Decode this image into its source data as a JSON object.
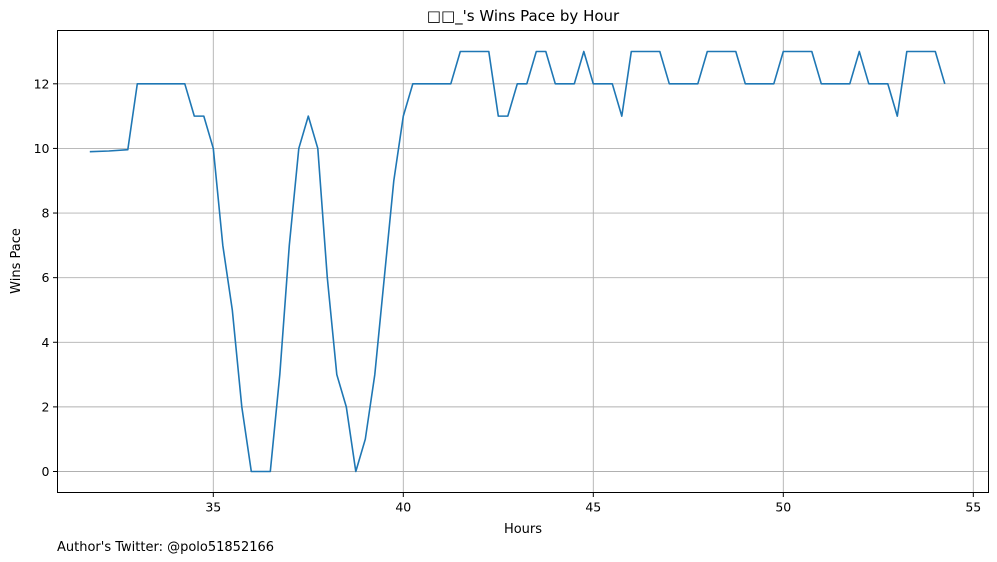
{
  "chart_data": {
    "type": "line",
    "title": "□□_'s Wins Pace by Hour",
    "xlabel": "Hours",
    "ylabel": "Wins Pace",
    "xlim": [
      30.9,
      55.4
    ],
    "ylim": [
      -0.65,
      13.65
    ],
    "xticks": [
      35,
      40,
      45,
      50,
      55
    ],
    "yticks": [
      0,
      2,
      4,
      6,
      8,
      10,
      12
    ],
    "grid": true,
    "line_color": "#1f77b4",
    "footnote": "Author's Twitter: @polo51852166",
    "series": [
      {
        "x": [
          31.75,
          32.25,
          32.75,
          33.0,
          33.25,
          33.5,
          33.75,
          34.0,
          34.25,
          34.5,
          34.75,
          35.0,
          35.25,
          35.5,
          35.75,
          36.0,
          36.25,
          36.5,
          36.75,
          37.0,
          37.25,
          37.5,
          37.75,
          38.0,
          38.25,
          38.5,
          38.75,
          39.0,
          39.25,
          39.5,
          39.75,
          40.0,
          40.25,
          40.5,
          40.75,
          41.0,
          41.25,
          41.5,
          41.75,
          42.0,
          42.25,
          42.5,
          42.75,
          43.0,
          43.25,
          43.5,
          43.75,
          44.0,
          44.25,
          44.5,
          44.75,
          45.0,
          45.25,
          45.5,
          45.75,
          46.0,
          46.25,
          46.5,
          46.75,
          47.0,
          47.25,
          47.5,
          47.75,
          48.0,
          48.25,
          48.5,
          48.75,
          49.0,
          49.25,
          49.5,
          49.75,
          50.0,
          50.25,
          50.5,
          50.75,
          51.0,
          51.25,
          51.5,
          51.75,
          52.0,
          52.25,
          52.5,
          52.75,
          53.0,
          53.25,
          53.5,
          53.75,
          54.0,
          54.25
        ],
        "y": [
          9.9,
          9.92,
          9.96,
          12,
          12,
          12,
          12,
          12,
          12,
          11,
          11,
          10,
          7,
          5,
          2,
          0,
          0,
          0,
          3,
          7,
          10,
          11,
          10,
          6,
          3,
          2,
          0,
          1,
          3,
          6,
          9,
          11,
          12,
          12,
          12,
          12,
          12,
          13,
          13,
          13,
          13,
          11,
          11,
          12,
          12,
          13,
          13,
          12,
          12,
          12,
          13,
          12,
          12,
          12,
          11,
          13,
          13,
          13,
          13,
          12,
          12,
          12,
          12,
          13,
          13,
          13,
          13,
          12,
          12,
          12,
          12,
          13,
          13,
          13,
          13,
          12,
          12,
          12,
          12,
          13,
          12,
          12,
          12,
          11,
          13,
          13,
          13,
          13,
          12
        ]
      }
    ]
  }
}
